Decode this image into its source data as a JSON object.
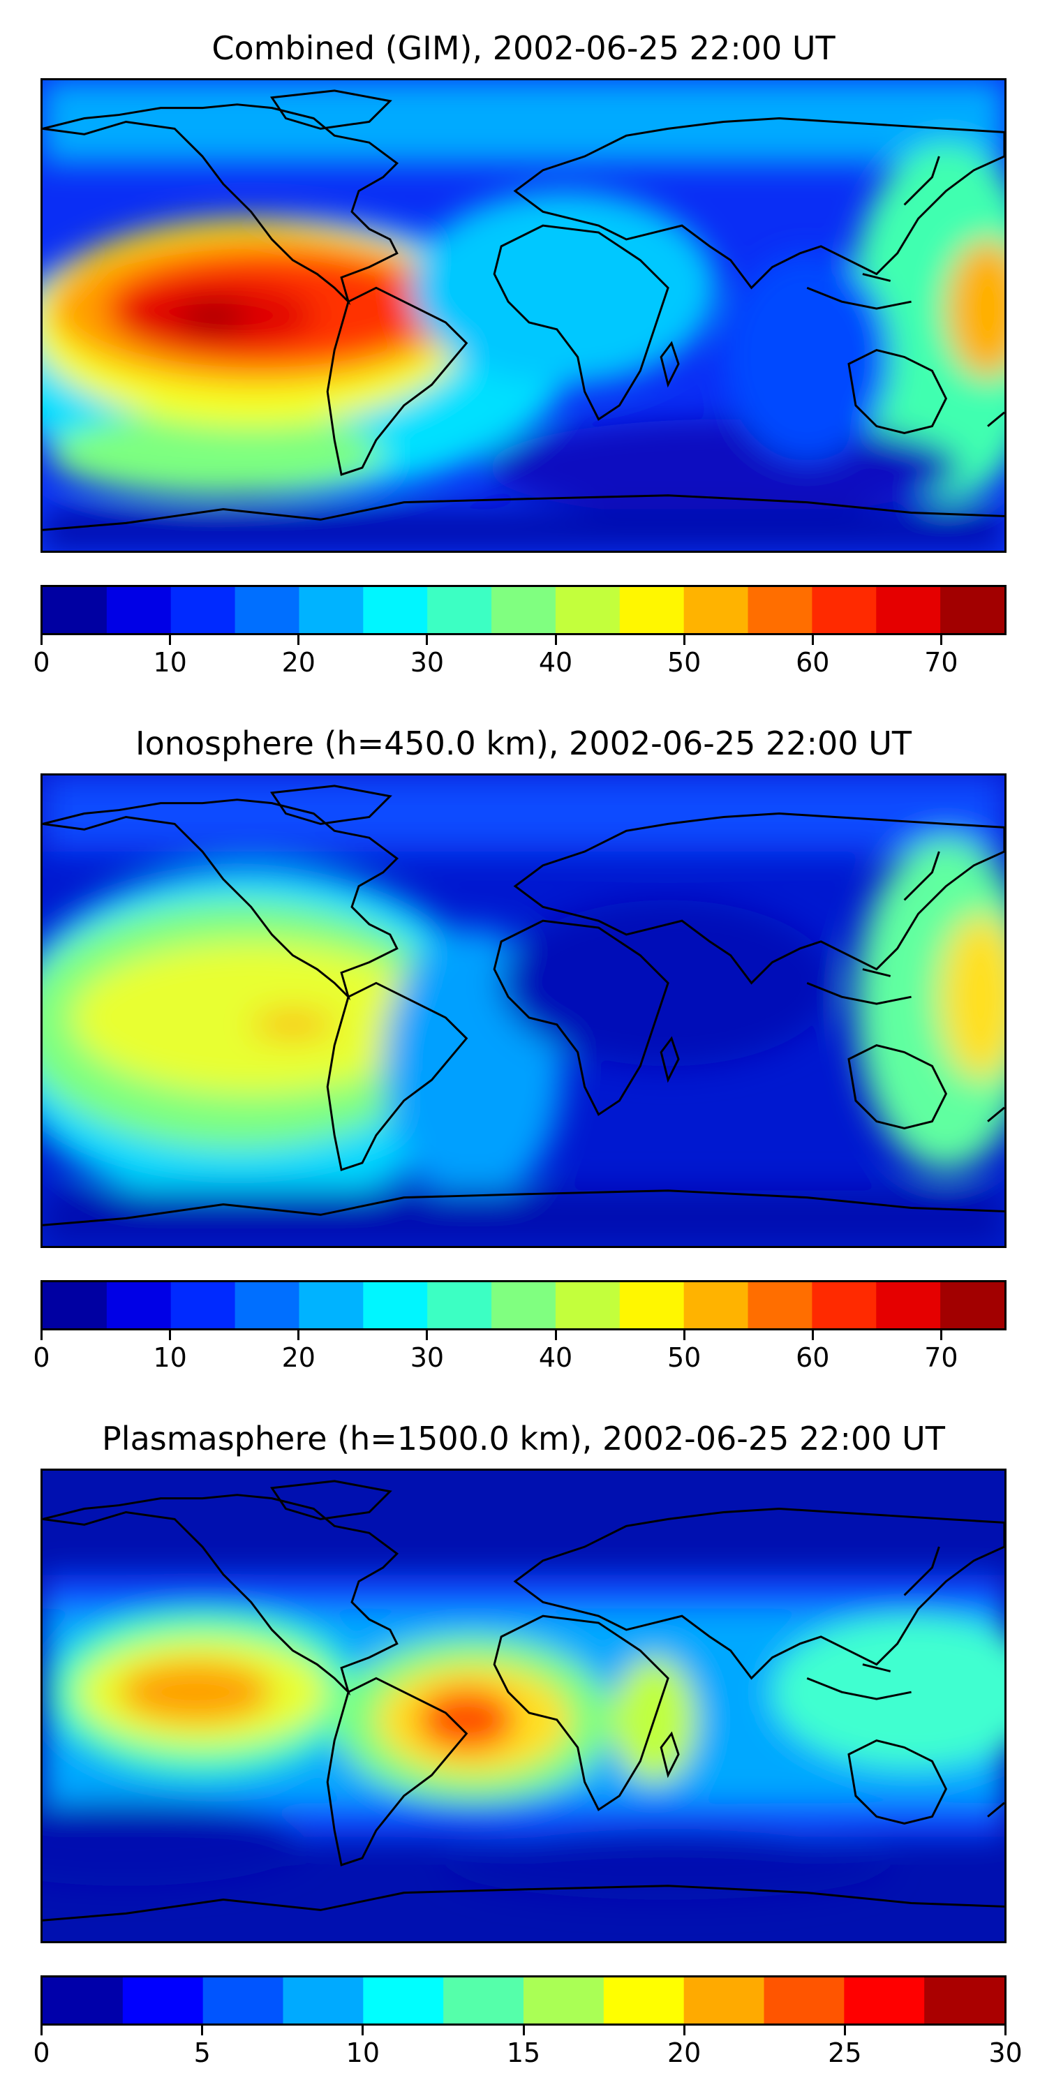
{
  "panels": [
    {
      "title": "Combined (GIM), 2002-06-25 22:00 UT",
      "colorbar": {
        "min": 0,
        "max": 75,
        "step": 5,
        "ticks": [
          0,
          10,
          20,
          30,
          40,
          50,
          60,
          70
        ]
      }
    },
    {
      "title": "Ionosphere  (h=450.0 km), 2002-06-25 22:00 UT",
      "colorbar": {
        "min": 0,
        "max": 75,
        "step": 5,
        "ticks": [
          0,
          10,
          20,
          30,
          40,
          50,
          60,
          70
        ]
      }
    },
    {
      "title": "Plasmasphere (h=1500.0 km), 2002-06-25 22:00 UT",
      "colorbar": {
        "min": 0,
        "max": 30,
        "step": 2.5,
        "ticks": [
          0,
          5,
          10,
          15,
          20,
          25,
          30
        ]
      }
    }
  ],
  "chart_data": [
    {
      "type": "heatmap",
      "title": "Combined (GIM), 2002-06-25 22:00 UT",
      "levels": [
        0,
        5,
        10,
        15,
        20,
        25,
        30,
        35,
        40,
        45,
        50,
        55,
        60,
        65,
        70,
        75
      ],
      "colorbar_ticks": [
        0,
        10,
        20,
        30,
        40,
        50,
        60,
        70
      ],
      "colormap": "jet",
      "ylim": [
        0,
        75
      ],
      "approximate_peaks": [
        {
          "region": "eastern Pacific, near equator",
          "value": 72
        },
        {
          "region": "western Pacific",
          "value": 50
        },
        {
          "region": "south Indian Ocean",
          "value": 5
        }
      ]
    },
    {
      "type": "heatmap",
      "title": "Ionosphere  (h=450.0 km), 2002-06-25 22:00 UT",
      "levels": [
        0,
        5,
        10,
        15,
        20,
        25,
        30,
        35,
        40,
        45,
        50,
        55,
        60,
        65,
        70,
        75
      ],
      "colorbar_ticks": [
        0,
        10,
        20,
        30,
        40,
        50,
        60,
        70
      ],
      "colormap": "jet",
      "ylim": [
        0,
        75
      ],
      "approximate_peaks": [
        {
          "region": "eastern Pacific, near equator",
          "value": 52
        },
        {
          "region": "western Pacific",
          "value": 47
        },
        {
          "region": "Africa / Indian Ocean",
          "value": 3
        }
      ]
    },
    {
      "type": "heatmap",
      "title": "Plasmasphere (h=1500.0 km), 2002-06-25 22:00 UT",
      "levels": [
        0,
        2.5,
        5,
        7.5,
        10,
        12.5,
        15,
        17.5,
        20,
        22.5,
        25,
        27.5,
        30
      ],
      "colorbar_ticks": [
        0,
        5,
        10,
        15,
        20,
        25,
        30
      ],
      "colormap": "jet",
      "ylim": [
        0,
        30
      ],
      "approximate_peaks": [
        {
          "region": "eastern Pacific",
          "value": 23
        },
        {
          "region": "tropical Atlantic / Brazil",
          "value": 25
        },
        {
          "region": "East Africa",
          "value": 17
        },
        {
          "region": "polar regions",
          "value": 1
        }
      ]
    }
  ]
}
